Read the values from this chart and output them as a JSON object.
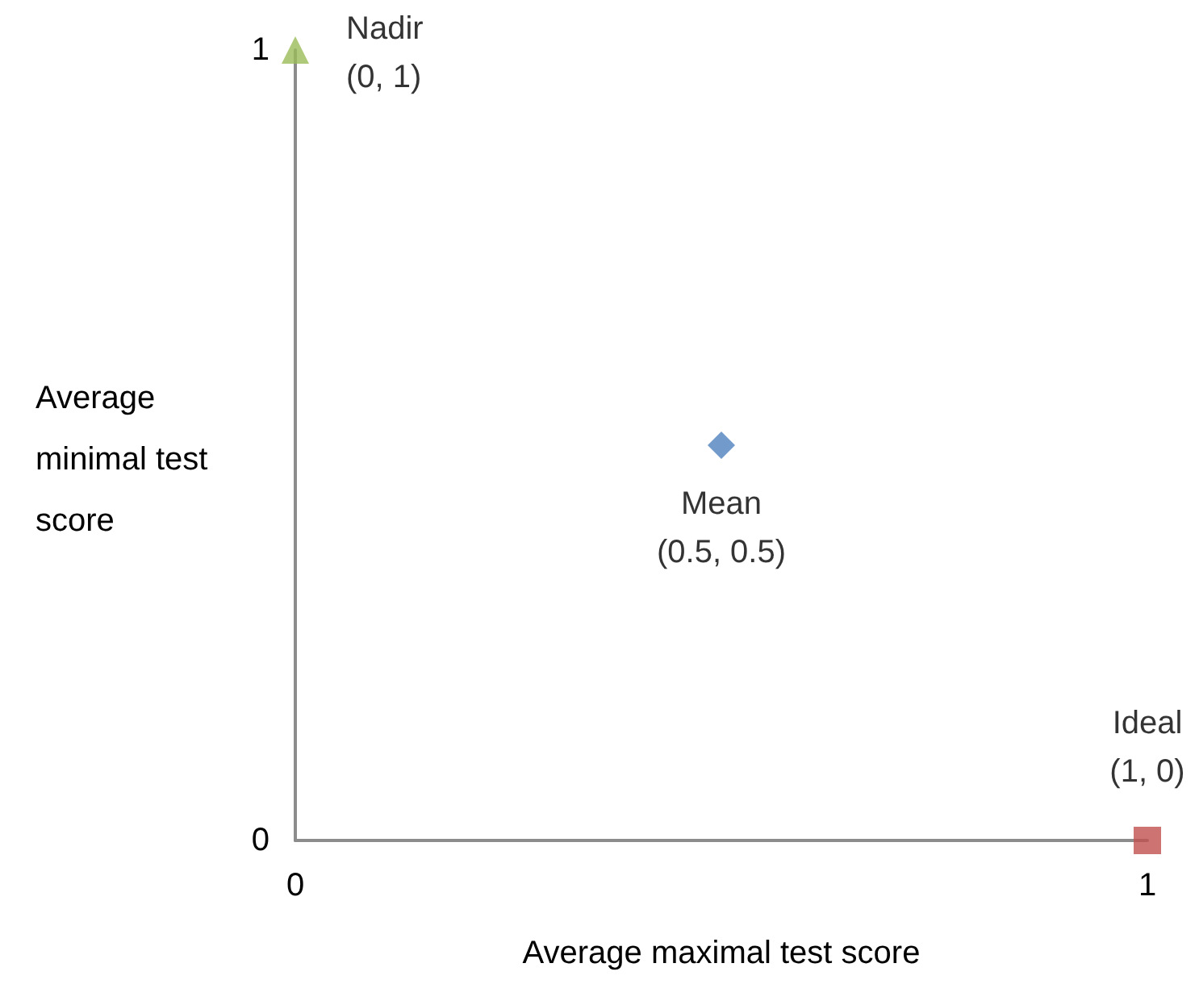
{
  "chart_data": {
    "type": "scatter",
    "xlabel": "Average maximal test score",
    "ylabel": "Average minimal test score",
    "xlim": [
      0,
      1
    ],
    "ylim": [
      0,
      1
    ],
    "xticks": [
      0,
      1
    ],
    "yticks": [
      0,
      1
    ],
    "grid": false,
    "legend": false,
    "series": [
      {
        "name": "Nadir",
        "color": "#9bbb59",
        "marker": "triangle",
        "x": [
          0
        ],
        "values": [
          1
        ],
        "value_labels": [
          "(0, 1)"
        ]
      },
      {
        "name": "Mean",
        "color": "#4f81bd",
        "marker": "diamond",
        "x": [
          0.5
        ],
        "values": [
          0.5
        ],
        "value_labels": [
          "(0.5, 0.5)"
        ]
      },
      {
        "name": "Ideal",
        "color": "#c0504d",
        "marker": "square",
        "x": [
          1
        ],
        "values": [
          0
        ],
        "value_labels": [
          "(1, 0)"
        ]
      }
    ]
  }
}
